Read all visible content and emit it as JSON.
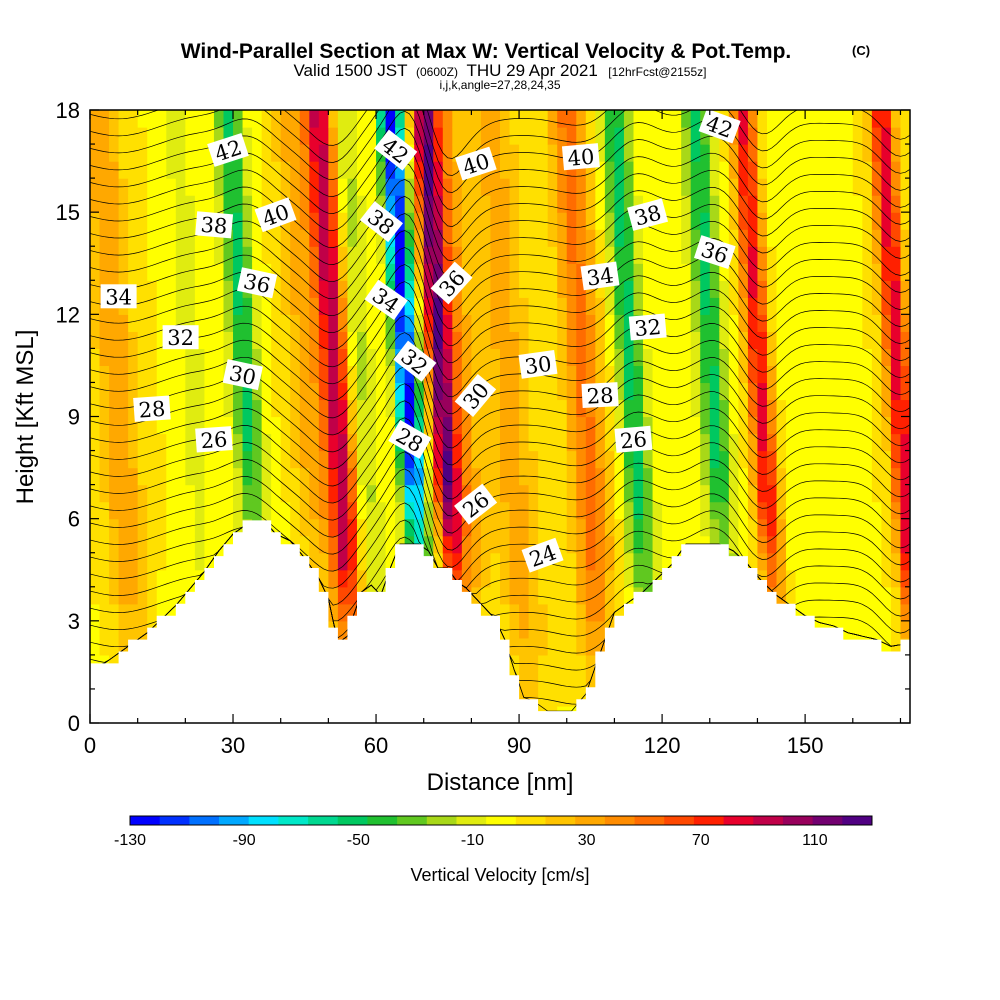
{
  "chart_data": {
    "type": "heatmap",
    "title": "Wind-Parallel Section at Max W: Vertical Velocity & Pot.Temp.",
    "title_mark": "(C)",
    "subtitle": {
      "prefix": "Valid 1500 JST",
      "utc": "(0600Z)",
      "date": "THU 29 Apr 2021",
      "forecast": "[12hrFcst@2155z]"
    },
    "indices": "i,j,k,angle=27,28,24,35",
    "xlabel": "Distance [nm]",
    "ylabel": "Height [Kft MSL]",
    "xlim": [
      0,
      172
    ],
    "ylim": [
      0,
      18
    ],
    "x_ticks": [
      0,
      30,
      60,
      90,
      120,
      150
    ],
    "y_ticks": [
      0,
      3,
      6,
      9,
      12,
      15,
      18
    ],
    "colorbar": {
      "label": "Vertical Velocity [cm/s]",
      "range": [
        -130,
        130
      ],
      "tick_labels": [
        "-130",
        "-90",
        "-50",
        "-10",
        "30",
        "70",
        "110"
      ],
      "colors": [
        "#0000ff",
        "#0030ff",
        "#0070ff",
        "#00a8ff",
        "#00e0ff",
        "#00e8c8",
        "#00d890",
        "#00c860",
        "#20c030",
        "#60c820",
        "#a8d818",
        "#e0ec10",
        "#ffff00",
        "#ffe000",
        "#ffc400",
        "#ffa800",
        "#ff8c00",
        "#ff6c00",
        "#ff4800",
        "#ff2000",
        "#e8002c",
        "#c00048",
        "#98005c",
        "#720070",
        "#500082"
      ]
    },
    "velocity_cores": [
      {
        "x": 6,
        "w": 4,
        "peak": 30
      },
      {
        "x": 22,
        "w": 3,
        "peak": -15
      },
      {
        "x": 33,
        "w": 3,
        "peak": -55
      },
      {
        "x": 46,
        "w": 4,
        "peak": 25
      },
      {
        "x": 52,
        "w": 3,
        "peak": 90
      },
      {
        "x": 57,
        "w": 3,
        "peak": -25
      },
      {
        "x": 67,
        "w": 2.5,
        "peak": -130
      },
      {
        "x": 74,
        "w": 2.5,
        "peak": 110
      },
      {
        "x": 78,
        "w": 3,
        "peak": 35
      },
      {
        "x": 88,
        "w": 5,
        "peak": 25
      },
      {
        "x": 104,
        "w": 4,
        "peak": 45
      },
      {
        "x": 114,
        "w": 3,
        "peak": -55
      },
      {
        "x": 131,
        "w": 3,
        "peak": -55
      },
      {
        "x": 141,
        "w": 2.5,
        "peak": 75
      },
      {
        "x": 146,
        "w": 3,
        "peak": -5
      },
      {
        "x": 170,
        "w": 2.5,
        "peak": 80
      }
    ],
    "terrain": [
      [
        0,
        1.6
      ],
      [
        3,
        1.7
      ],
      [
        6,
        2.0
      ],
      [
        9,
        2.3
      ],
      [
        12,
        2.6
      ],
      [
        15,
        3.0
      ],
      [
        18,
        3.4
      ],
      [
        21,
        3.9
      ],
      [
        24,
        4.4
      ],
      [
        27,
        5.0
      ],
      [
        30,
        5.5
      ],
      [
        33,
        5.8
      ],
      [
        37,
        5.8
      ],
      [
        39,
        5.5
      ],
      [
        42,
        5.3
      ],
      [
        45,
        4.8
      ],
      [
        48,
        4.2
      ],
      [
        50,
        3.6
      ],
      [
        52,
        2.3
      ],
      [
        54,
        2.5
      ],
      [
        55,
        3.0
      ],
      [
        57,
        3.8
      ],
      [
        59,
        4.0
      ],
      [
        61,
        3.7
      ],
      [
        63,
        4.5
      ],
      [
        65,
        5.2
      ],
      [
        69,
        5.2
      ],
      [
        71,
        5.0
      ],
      [
        73,
        4.5
      ],
      [
        75,
        4.5
      ],
      [
        77,
        4.1
      ],
      [
        79,
        3.9
      ],
      [
        81,
        3.6
      ],
      [
        83,
        3.3
      ],
      [
        85,
        3.0
      ],
      [
        87,
        2.4
      ],
      [
        89,
        1.5
      ],
      [
        91,
        0.7
      ],
      [
        93,
        0.6
      ],
      [
        96,
        0.3
      ],
      [
        101,
        0.3
      ],
      [
        104,
        0.8
      ],
      [
        106,
        1.6
      ],
      [
        108,
        2.4
      ],
      [
        110,
        3.2
      ],
      [
        113,
        3.5
      ],
      [
        116,
        3.8
      ],
      [
        119,
        4.2
      ],
      [
        122,
        4.6
      ],
      [
        125,
        5.2
      ],
      [
        128,
        5.2
      ],
      [
        132,
        5.2
      ],
      [
        135,
        5.0
      ],
      [
        138,
        4.6
      ],
      [
        141,
        4.1
      ],
      [
        144,
        3.7
      ],
      [
        147,
        3.4
      ],
      [
        150,
        3.1
      ],
      [
        153,
        2.9
      ],
      [
        156,
        2.8
      ],
      [
        159,
        2.6
      ],
      [
        162,
        2.5
      ],
      [
        165,
        2.4
      ],
      [
        168,
        2.2
      ],
      [
        172,
        2.3
      ]
    ],
    "isentropes_count": 36,
    "isentrope_labels": [
      {
        "text": "42",
        "x": 29,
        "y": 16.8,
        "angle": -18
      },
      {
        "text": "42",
        "x": 64,
        "y": 16.8,
        "angle": 38
      },
      {
        "text": "40",
        "x": 81,
        "y": 16.4,
        "angle": -18
      },
      {
        "text": "40",
        "x": 103,
        "y": 16.6,
        "angle": -5
      },
      {
        "text": "42",
        "x": 132,
        "y": 17.5,
        "angle": 20
      },
      {
        "text": "38",
        "x": 26,
        "y": 14.6,
        "angle": 5
      },
      {
        "text": "40",
        "x": 39,
        "y": 14.9,
        "angle": -20
      },
      {
        "text": "38",
        "x": 61,
        "y": 14.7,
        "angle": 38
      },
      {
        "text": "38",
        "x": 117,
        "y": 14.9,
        "angle": -15
      },
      {
        "text": "36",
        "x": 131,
        "y": 13.8,
        "angle": 18
      },
      {
        "text": "36",
        "x": 35,
        "y": 12.9,
        "angle": 12
      },
      {
        "text": "36",
        "x": 76,
        "y": 12.9,
        "angle": -48
      },
      {
        "text": "34",
        "x": 6,
        "y": 12.5,
        "angle": 0
      },
      {
        "text": "34",
        "x": 62,
        "y": 12.4,
        "angle": 35
      },
      {
        "text": "34",
        "x": 107,
        "y": 13.1,
        "angle": -8
      },
      {
        "text": "32",
        "x": 19,
        "y": 11.3,
        "angle": 0
      },
      {
        "text": "32",
        "x": 68,
        "y": 10.6,
        "angle": 38
      },
      {
        "text": "32",
        "x": 117,
        "y": 11.6,
        "angle": -5
      },
      {
        "text": "30",
        "x": 32,
        "y": 10.2,
        "angle": 12
      },
      {
        "text": "30",
        "x": 81,
        "y": 9.6,
        "angle": -50
      },
      {
        "text": "30",
        "x": 94,
        "y": 10.5,
        "angle": -8
      },
      {
        "text": "28",
        "x": 13,
        "y": 9.2,
        "angle": -4
      },
      {
        "text": "28",
        "x": 67,
        "y": 8.3,
        "angle": 30
      },
      {
        "text": "28",
        "x": 107,
        "y": 9.6,
        "angle": -3
      },
      {
        "text": "26",
        "x": 26,
        "y": 8.3,
        "angle": -4
      },
      {
        "text": "26",
        "x": 81,
        "y": 6.4,
        "angle": -38
      },
      {
        "text": "26",
        "x": 114,
        "y": 8.3,
        "angle": -5
      },
      {
        "text": "24",
        "x": 95,
        "y": 4.9,
        "angle": -20
      }
    ]
  }
}
